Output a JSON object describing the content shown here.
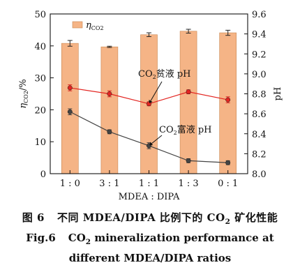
{
  "chart_data": {
    "type": "bar",
    "categories": [
      "1 : 0",
      "3 : 1",
      "1 : 1",
      "1 : 3",
      "0 : 1"
    ],
    "xlabel": "MDEA : DIPA",
    "ylabel_left": "ηCO2/%",
    "ylabel_right": "pH",
    "ylim_left": [
      0,
      50
    ],
    "ylim_right": [
      8.0,
      9.6
    ],
    "yticks_left": [
      0,
      10,
      20,
      30,
      40,
      50
    ],
    "yticks_right": [
      8.0,
      8.2,
      8.4,
      8.6,
      8.8,
      9.0,
      9.2,
      9.4,
      9.6
    ],
    "legend": {
      "label": "ηCO2",
      "placement": "top-left"
    },
    "grid": false,
    "series": [
      {
        "name": "ηCO2",
        "kind": "bar",
        "axis": "left",
        "color": "#f5b486",
        "values": [
          40.8,
          39.7,
          43.5,
          44.6,
          44.1
        ],
        "errors": [
          0.9,
          0.2,
          0.6,
          0.6,
          0.8
        ]
      },
      {
        "name": "CO2贫液 pH",
        "kind": "line",
        "axis": "right",
        "color": "#e32521",
        "values": [
          8.86,
          8.8,
          8.7,
          8.82,
          8.74
        ],
        "errors": [
          0.03,
          0.03,
          0.02,
          0.02,
          0.03
        ]
      },
      {
        "name": "CO2富液 pH",
        "kind": "line",
        "axis": "right",
        "color": "#444444",
        "values": [
          8.62,
          8.42,
          8.28,
          8.13,
          8.11
        ],
        "errors": [
          0.03,
          0.02,
          0.03,
          0.02,
          0.02
        ]
      }
    ],
    "annotations": [
      {
        "text_main": "CO",
        "text_sub": "2",
        "text_rest": "贫液 pH",
        "target_series": 1,
        "target_index": 2
      },
      {
        "text_main": "CO",
        "text_sub": "2",
        "text_rest": "富液 pH",
        "target_series": 2,
        "target_index": 2
      }
    ]
  },
  "caption": {
    "zh_label": "图 6",
    "zh_pre": "不同 MDEA/DIPA 比例下的 CO",
    "zh_sub": "2",
    "zh_post": " 矿化性能",
    "en_label": "Fig.6",
    "en_pre": "CO",
    "en_sub": "2",
    "en_post": " mineralization performance at",
    "en_line2": "different MDEA/DIPA ratios"
  }
}
